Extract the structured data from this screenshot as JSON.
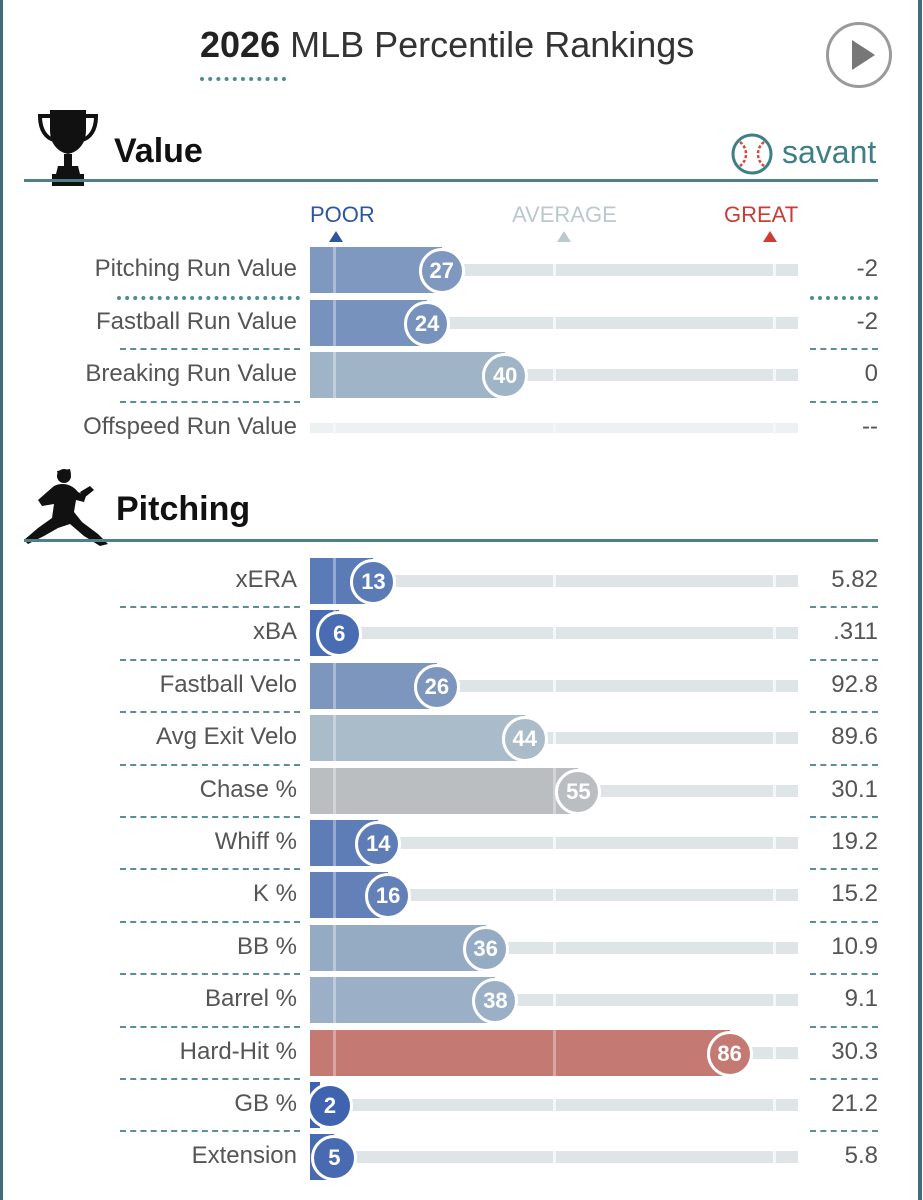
{
  "title": {
    "year": "2026",
    "rest": " MLB Percentile Rankings"
  },
  "brand": {
    "name": "savant"
  },
  "scale": {
    "poor": "POOR",
    "average": "AVERAGE",
    "great": "GREAT"
  },
  "colors": {
    "poor": "#3a5fae",
    "average": "#b9c9cd",
    "great": "#c85a4e",
    "accent": "#4f8088"
  },
  "sections": [
    {
      "title": "Value",
      "icon": "trophy-icon",
      "rows": [
        {
          "label": "Pitching Run Value",
          "percentile": 27,
          "value": "-2"
        },
        {
          "label": "Fastball Run Value",
          "percentile": 24,
          "value": "-2"
        },
        {
          "label": "Breaking Run Value",
          "percentile": 40,
          "value": "0"
        },
        {
          "label": "Offspeed Run Value",
          "percentile": null,
          "value": "--"
        }
      ]
    },
    {
      "title": "Pitching",
      "icon": "pitcher-icon",
      "rows": [
        {
          "label": "xERA",
          "percentile": 13,
          "value": "5.82"
        },
        {
          "label": "xBA",
          "percentile": 6,
          "value": ".311"
        },
        {
          "label": "Fastball Velo",
          "percentile": 26,
          "value": "92.8"
        },
        {
          "label": "Avg Exit Velo",
          "percentile": 44,
          "value": "89.6"
        },
        {
          "label": "Chase %",
          "percentile": 55,
          "value": "30.1"
        },
        {
          "label": "Whiff %",
          "percentile": 14,
          "value": "19.2"
        },
        {
          "label": "K %",
          "percentile": 16,
          "value": "15.2"
        },
        {
          "label": "BB %",
          "percentile": 36,
          "value": "10.9"
        },
        {
          "label": "Barrel %",
          "percentile": 38,
          "value": "9.1"
        },
        {
          "label": "Hard-Hit %",
          "percentile": 86,
          "value": "30.3"
        },
        {
          "label": "GB %",
          "percentile": 2,
          "value": "21.2"
        },
        {
          "label": "Extension",
          "percentile": 5,
          "value": "5.8"
        }
      ]
    }
  ]
}
